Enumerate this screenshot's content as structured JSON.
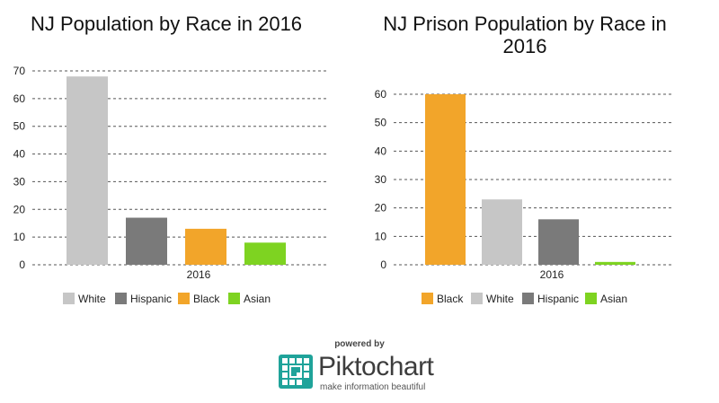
{
  "chart_data": [
    {
      "type": "bar",
      "title_lines": [
        "NJ Population by Race in 2016"
      ],
      "categories": [
        "2016"
      ],
      "series": [
        {
          "name": "White",
          "values": [
            68
          ],
          "color": "#c6c6c6"
        },
        {
          "name": "Hispanic",
          "values": [
            17
          ],
          "color": "#7a7a7a"
        },
        {
          "name": "Black",
          "values": [
            13
          ],
          "color": "#f2a52a"
        },
        {
          "name": "Asian",
          "values": [
            8
          ],
          "color": "#7ed321"
        }
      ],
      "ylim": [
        0,
        70
      ],
      "yticks": [
        0,
        10,
        20,
        30,
        40,
        50,
        60,
        70
      ],
      "xlabel": "",
      "ylabel": "",
      "grid": true,
      "legend_position": "bottom"
    },
    {
      "type": "bar",
      "title_lines": [
        "NJ Prison Population by Race in",
        "2016"
      ],
      "categories": [
        "2016"
      ],
      "series": [
        {
          "name": "Black",
          "values": [
            60
          ],
          "color": "#f2a52a"
        },
        {
          "name": "White",
          "values": [
            23
          ],
          "color": "#c6c6c6"
        },
        {
          "name": "Hispanic",
          "values": [
            16
          ],
          "color": "#7a7a7a"
        },
        {
          "name": "Asian",
          "values": [
            1
          ],
          "color": "#7ed321"
        }
      ],
      "ylim": [
        0,
        60
      ],
      "yticks": [
        0,
        10,
        20,
        30,
        40,
        50,
        60
      ],
      "xlabel": "",
      "ylabel": "",
      "grid": true,
      "legend_position": "bottom"
    }
  ],
  "branding": {
    "powered_by": "powered by",
    "name": "Piktochart",
    "tagline": "make information beautiful",
    "logo_icon": "piktochart-logo-icon",
    "logo_color": "#1fa39a"
  }
}
